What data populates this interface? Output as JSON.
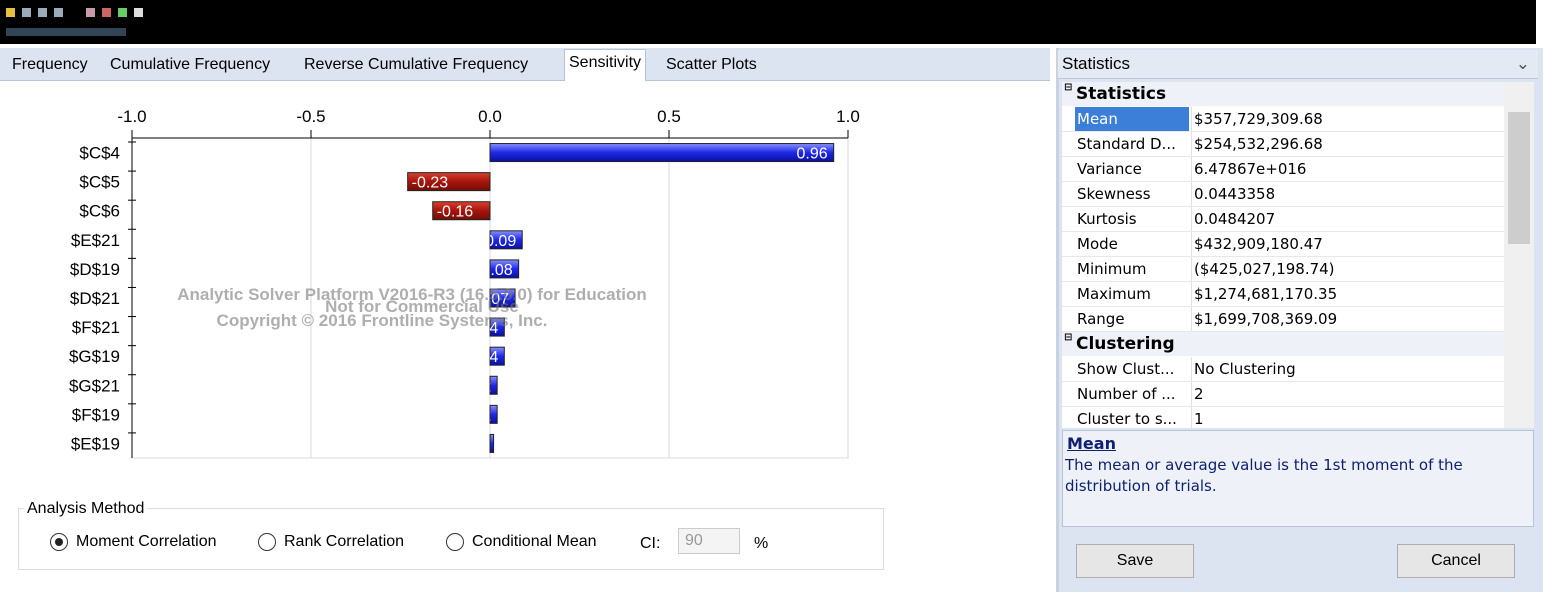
{
  "tabs": [
    "Frequency",
    "Cumulative Frequency",
    "Reverse Cumulative Frequency",
    "Sensitivity",
    "Scatter Plots"
  ],
  "chart_data": {
    "type": "bar",
    "orientation": "horizontal",
    "categories": [
      "$C$4",
      "$C$5",
      "$C$6",
      "$E$21",
      "$D$19",
      "$D$21",
      "$F$21",
      "$G$19",
      "$G$21",
      "$F$19",
      "$E$19"
    ],
    "values": [
      0.96,
      -0.23,
      -0.16,
      0.09,
      0.08,
      0.07,
      0.04,
      0.04,
      0.02,
      0.02,
      0.01
    ],
    "positive_color": "#1e28e6",
    "negative_color": "#a8140c",
    "xlim": [
      -1,
      1
    ],
    "xticks": [
      {
        "value": -1,
        "label": "-1.0"
      },
      {
        "value": -0.5,
        "label": "-0.5"
      },
      {
        "value": 0,
        "label": "0.0"
      },
      {
        "value": 0.5,
        "label": "0.5"
      },
      {
        "value": 1,
        "label": "1.0"
      }
    ],
    "grid": true,
    "annotations": [
      "Analytic Solver Platform V2016-R3 (16.5.0.0) for Education",
      "Not for Commercial Use",
      "Copyright © 2016 Frontline Systems, Inc."
    ]
  },
  "analysis_method": {
    "title": "Analysis Method",
    "options": [
      "Moment Correlation",
      "Rank Correlation",
      "Conditional Mean"
    ],
    "ci_label": "CI:",
    "ci_value": "90",
    "ci_unit": "%"
  },
  "statistics_panel": {
    "header": "Statistics",
    "sections": [
      {
        "title": "Statistics",
        "rows": [
          [
            "Mean",
            "$357,729,309.68"
          ],
          [
            "Standard D...",
            "$254,532,296.68"
          ],
          [
            "Variance",
            "6.47867e+016"
          ],
          [
            "Skewness",
            "0.0443358"
          ],
          [
            "Kurtosis",
            "0.0484207"
          ],
          [
            "Mode",
            "$432,909,180.47"
          ],
          [
            "Minimum",
            "($425,027,198.74)"
          ],
          [
            "Maximum",
            "$1,274,681,170.35"
          ],
          [
            "Range",
            "$1,699,708,369.09"
          ]
        ]
      },
      {
        "title": "Clustering",
        "rows": [
          [
            "Show Clust...",
            "No Clustering"
          ],
          [
            "Number of ...",
            "2"
          ],
          [
            "Cluster to s...",
            "1"
          ]
        ]
      }
    ],
    "description": {
      "title": "Mean",
      "text": "The mean or average value is the 1st moment of the distribution of trials."
    }
  },
  "buttons": [
    "Save",
    "Cancel"
  ]
}
